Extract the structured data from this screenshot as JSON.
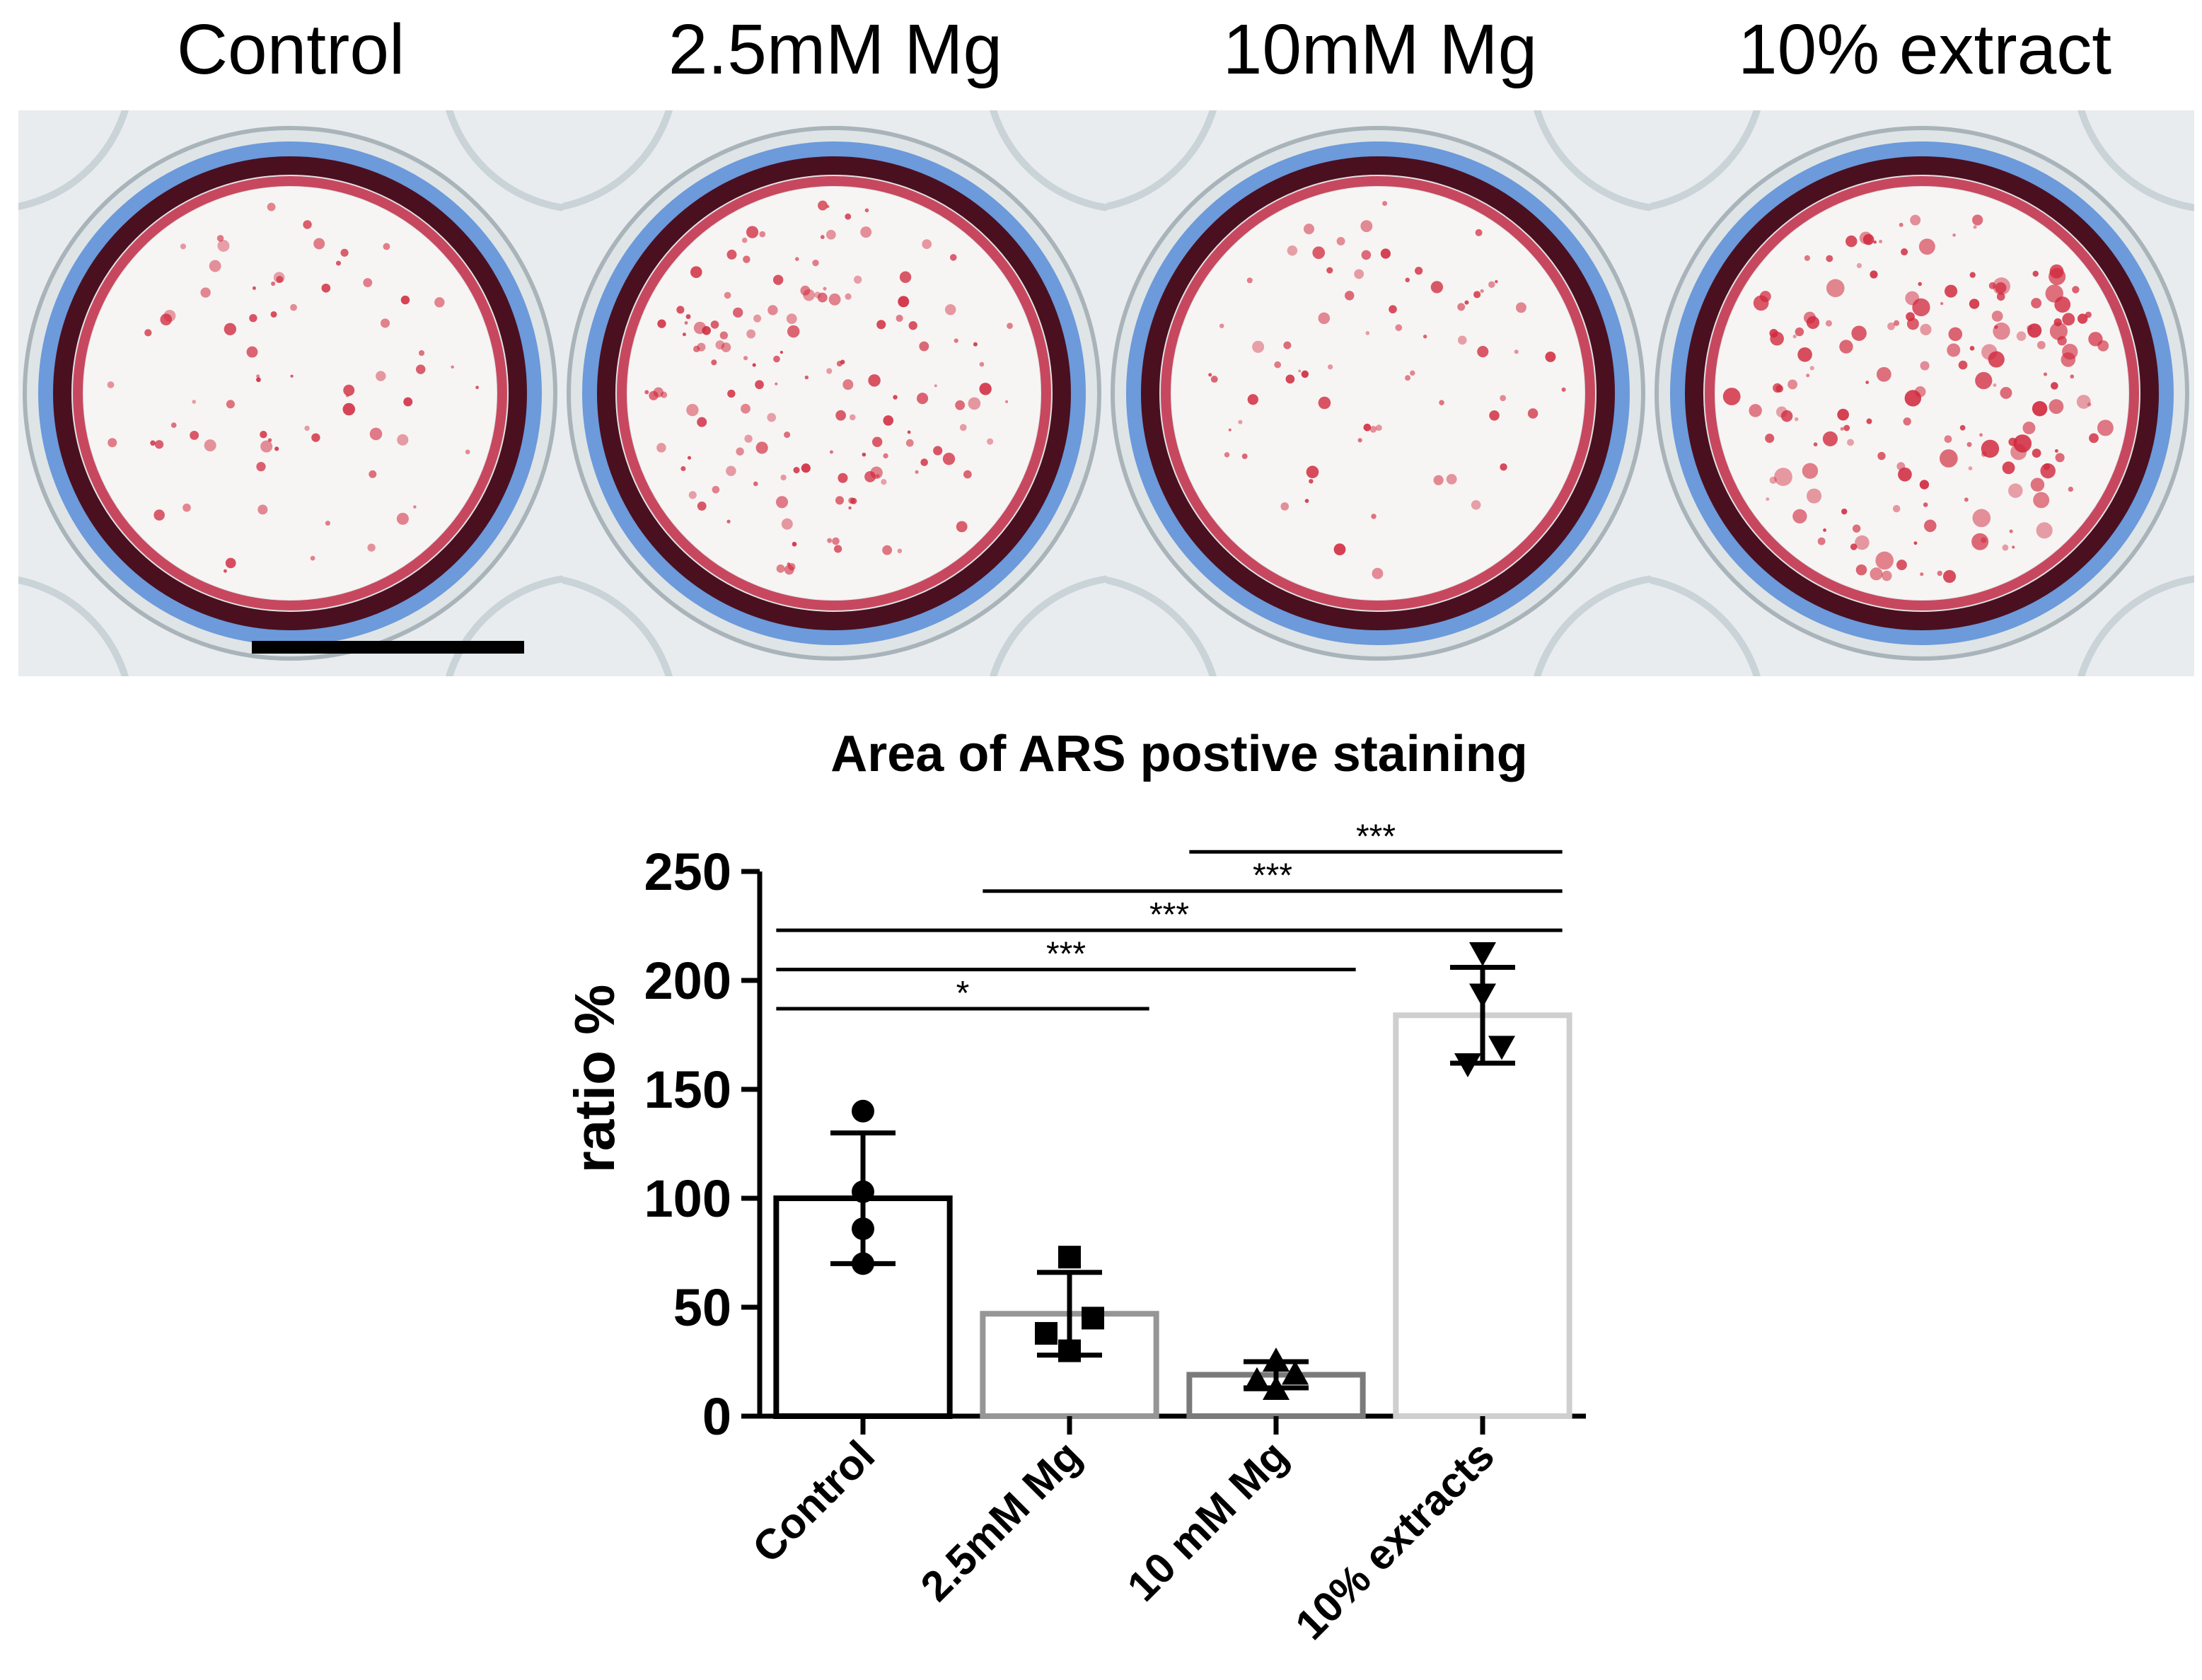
{
  "panels": [
    {
      "label": "Control",
      "stain_density": "low",
      "seed": 11
    },
    {
      "label": "2.5mM Mg",
      "stain_density": "medium",
      "seed": 23
    },
    {
      "label": "10mM Mg",
      "stain_density": "low",
      "seed": 37
    },
    {
      "label": "10% extract",
      "stain_density": "high",
      "seed": 51
    }
  ],
  "colors": {
    "stain": "#d0283c",
    "well_rim_dark": "#4a1020",
    "well_rim_blue": "#3a7bd5",
    "well_bg": "#f7f5f4",
    "plate_bg": "#e9ecee"
  },
  "chart_data": {
    "type": "bar",
    "title": "Area of ARS postive staining",
    "ylabel": "ratio %",
    "xlabel": "",
    "ylim": [
      0,
      250
    ],
    "yticks": [
      0,
      50,
      100,
      150,
      200,
      250
    ],
    "categories": [
      "Control",
      "2.5mM Mg",
      "10 mM Mg",
      "10% extracts"
    ],
    "means": [
      100,
      47,
      19,
      184
    ],
    "sd": [
      30,
      19,
      6,
      22
    ],
    "bar_colors": [
      "#000000",
      "#969696",
      "#7a7a7a",
      "#cfcfcf"
    ],
    "marker_shapes": [
      "circle",
      "square",
      "triangle-up",
      "triangle-down"
    ],
    "points": [
      [
        140,
        103,
        86,
        70
      ],
      [
        73,
        45,
        38,
        30
      ],
      [
        25,
        19,
        16,
        12
      ],
      [
        213,
        194,
        170,
        162
      ]
    ],
    "significance": [
      {
        "from": 0,
        "to": 1,
        "label": "*",
        "y": 187
      },
      {
        "from": 0,
        "to": 2,
        "label": "***",
        "y": 205
      },
      {
        "from": 0,
        "to": 3,
        "label": "***",
        "y": 223
      },
      {
        "from": 1,
        "to": 3,
        "label": "***",
        "y": 241
      },
      {
        "from": 2,
        "to": 3,
        "label": "***",
        "y": 259
      }
    ]
  }
}
